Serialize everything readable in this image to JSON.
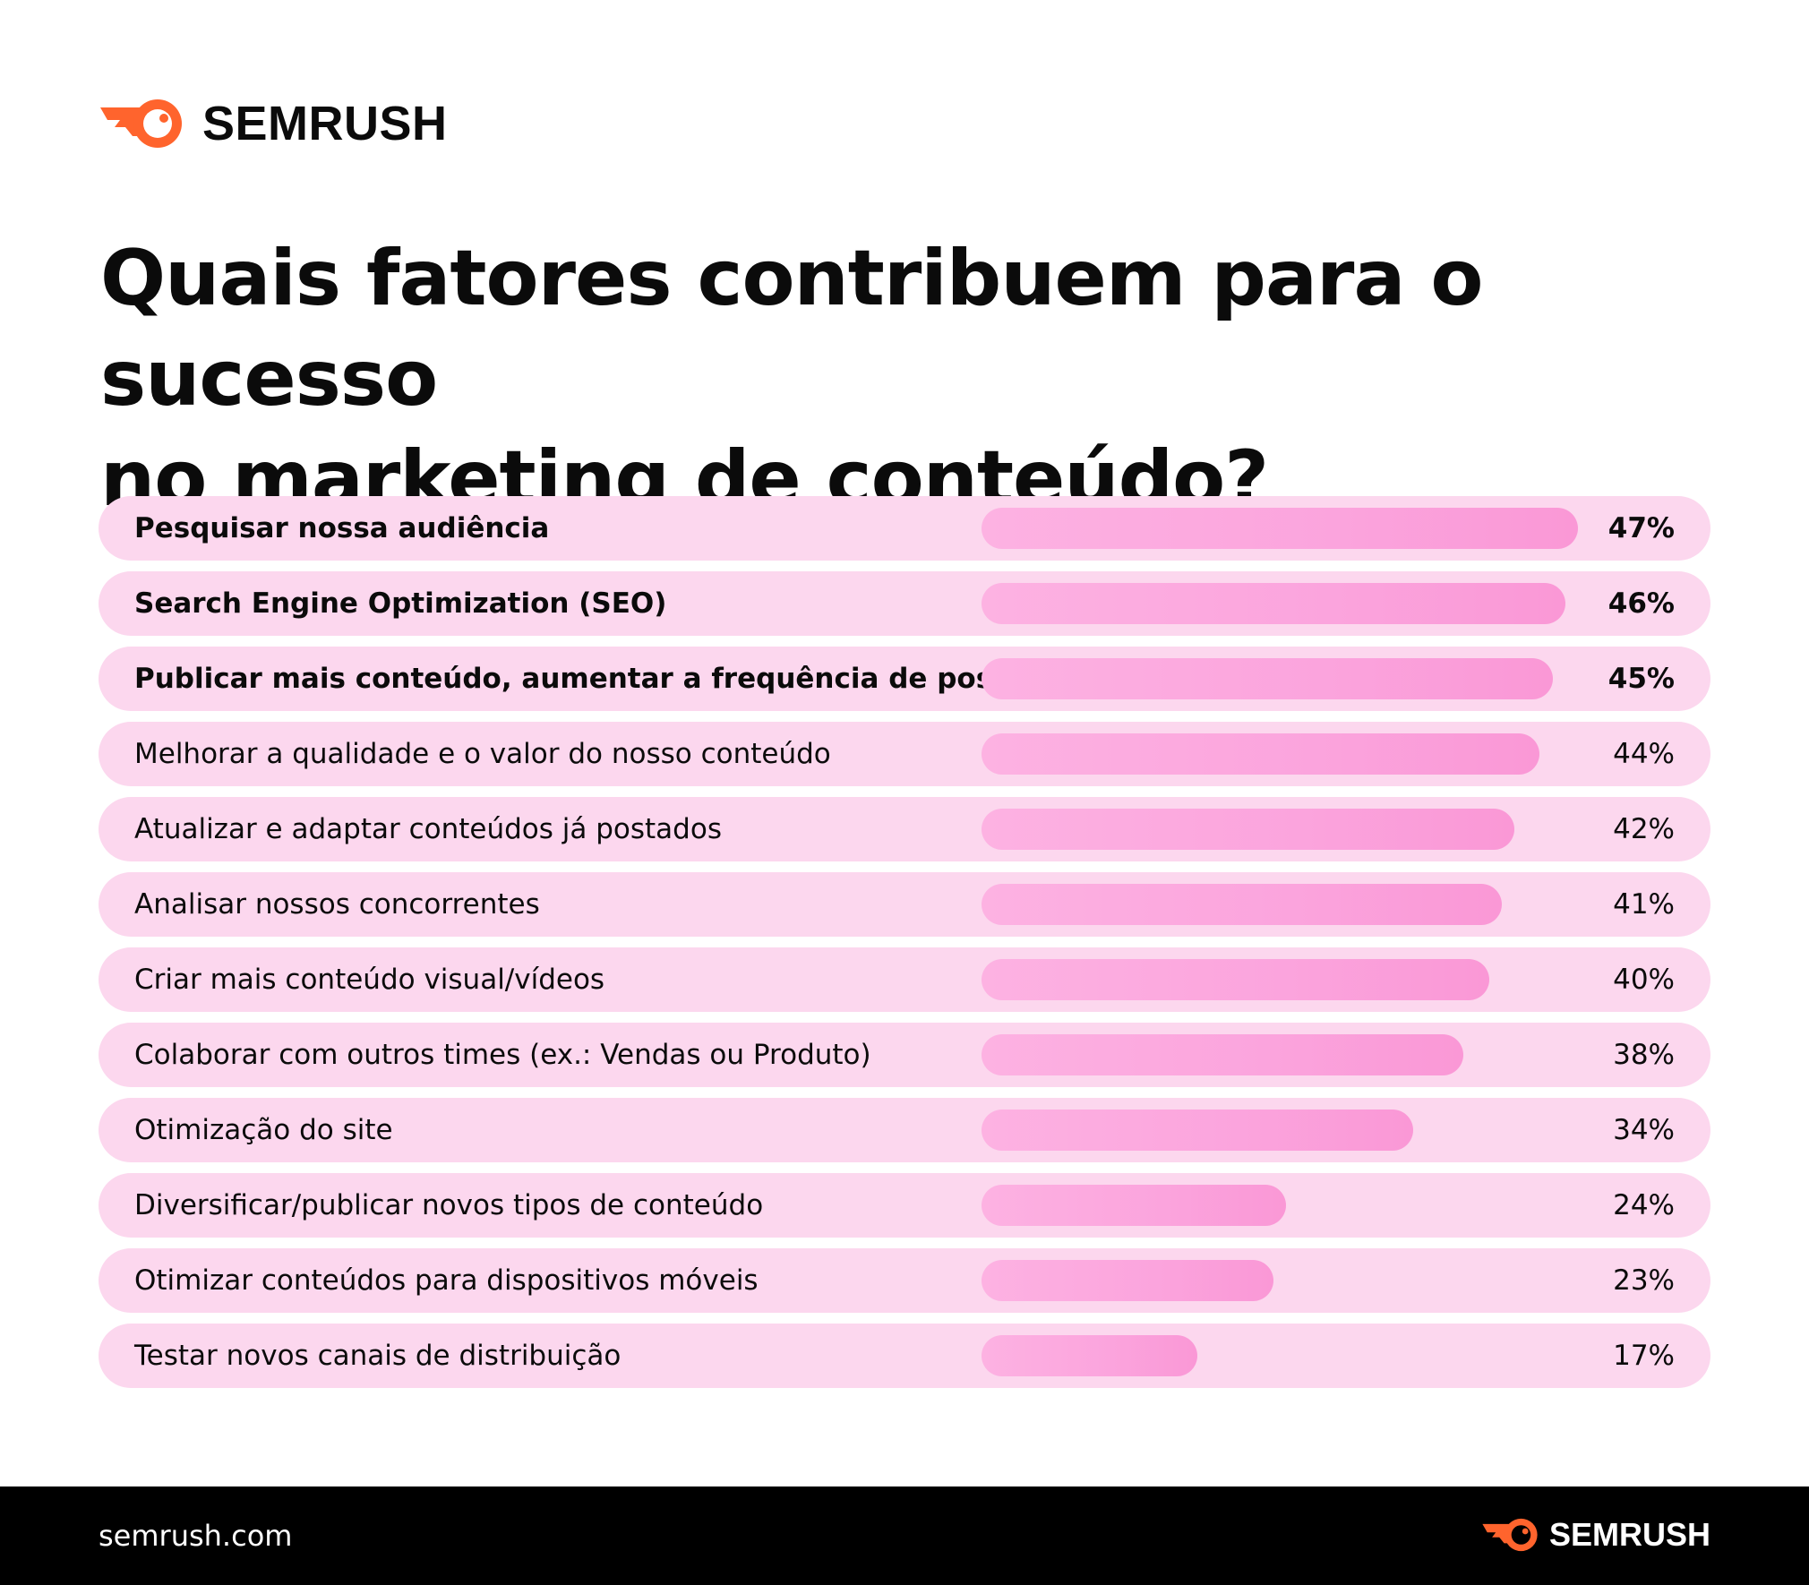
{
  "brand": {
    "name": "SEMRUSH",
    "logo_icon": "semrush-fireball-icon",
    "accent_color": "#ff642d"
  },
  "title_line1": "Quais fatores contribuem para o sucesso",
  "title_line2": "no marketing de conteúdo?",
  "colors": {
    "row_background": "#fcd7ee",
    "bar_start": "#fdb2e2",
    "bar_end": "#fa98d6",
    "footer_background": "#000000"
  },
  "chart_data": {
    "type": "bar",
    "orientation": "horizontal",
    "value_unit": "%",
    "xlim": [
      0,
      47
    ],
    "categories": [
      "Pesquisar nossa audiência",
      "Search Engine Optimization (SEO)",
      "Publicar mais conteúdo, aumentar a frequência de postagem",
      "Melhorar a qualidade e o valor do nosso conteúdo",
      "Atualizar e adaptar conteúdos já postados",
      "Analisar nossos concorrentes",
      "Criar mais conteúdo visual/vídeos",
      "Colaborar com outros times (ex.: Vendas ou Produto)",
      "Otimização do site",
      "Diversificar/publicar novos tipos de conteúdo",
      "Otimizar conteúdos para dispositivos móveis",
      "Testar novos canais de distribuição"
    ],
    "values": [
      47,
      46,
      45,
      44,
      42,
      41,
      40,
      38,
      34,
      24,
      23,
      17
    ],
    "value_labels": [
      "47%",
      "46%",
      "45%",
      "44%",
      "42%",
      "41%",
      "40%",
      "38%",
      "34%",
      "24%",
      "23%",
      "17%"
    ],
    "bold_rows": [
      0,
      1,
      2
    ]
  },
  "footer": {
    "url": "semrush.com",
    "brand_name": "SEMRUSH"
  }
}
